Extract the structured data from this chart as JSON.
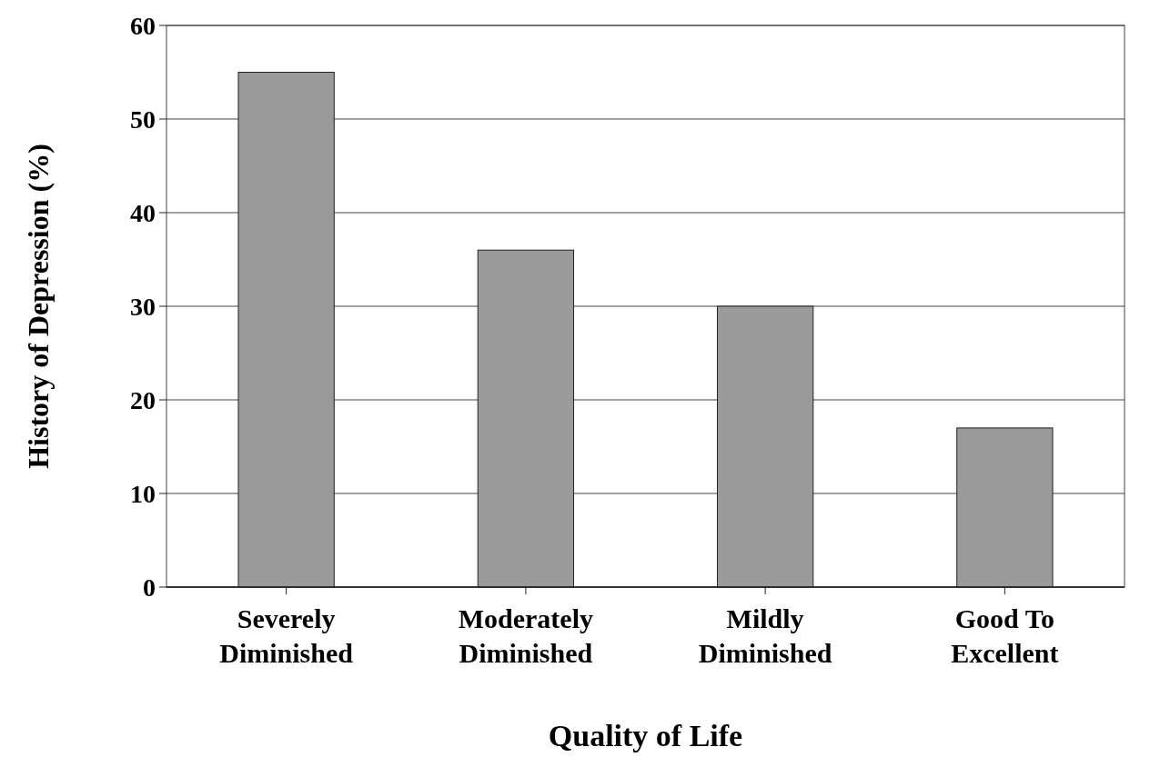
{
  "chart_data": {
    "type": "bar",
    "xlabel": "Quality of Life",
    "ylabel": "History of Depression (%)",
    "categories": [
      "Severely Diminished",
      "Moderately Diminished",
      "Mildly Diminished",
      "Good To Excellent"
    ],
    "values": [
      55,
      36,
      30,
      17
    ],
    "color": "#9a9a9a",
    "ylim": [
      0,
      60
    ],
    "yticks": [
      0,
      10,
      20,
      30,
      40,
      50,
      60
    ],
    "grid": "y"
  }
}
